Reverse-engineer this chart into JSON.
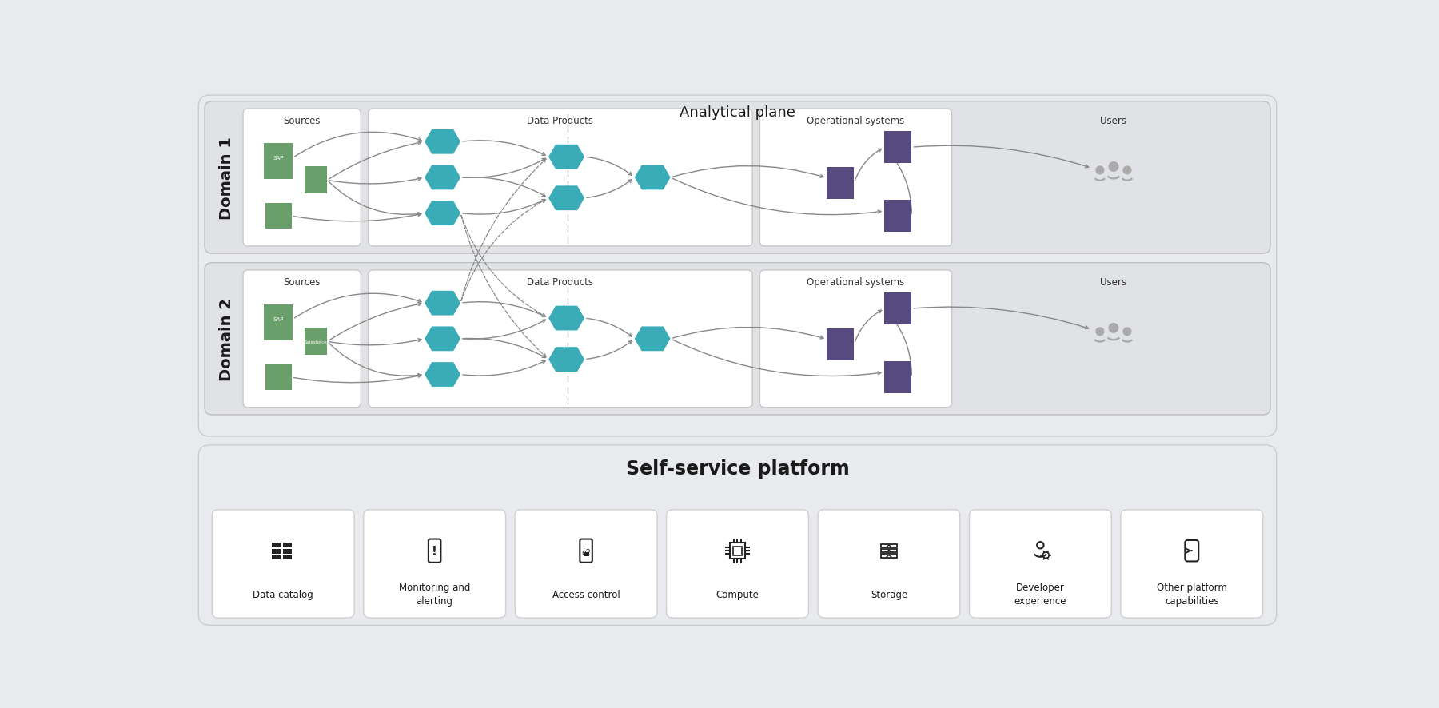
{
  "bg_light": "#e8eaed",
  "bg_white": "#ffffff",
  "bg_domain_row": "#d9dadc",
  "color_teal": "#3aacb8",
  "color_green": "#6a9e6a",
  "color_purple": "#564a7e",
  "color_arrow": "#888888",
  "color_dashed": "#888888",
  "title_analytical": "Analytical plane",
  "title_self_service": "Self-service platform",
  "domain1_label": "Domain 1",
  "domain2_label": "Domain 2",
  "sources_label": "Sources",
  "data_products_label": "Data Products",
  "operational_label": "Operational systems",
  "users_label": "Users",
  "platform_labels": [
    "Data catalog",
    "Monitoring and\nalerting",
    "Access control",
    "Compute",
    "Storage",
    "Developer\nexperience",
    "Other platform\ncapabilities"
  ],
  "figw": 18.0,
  "figh": 8.87
}
